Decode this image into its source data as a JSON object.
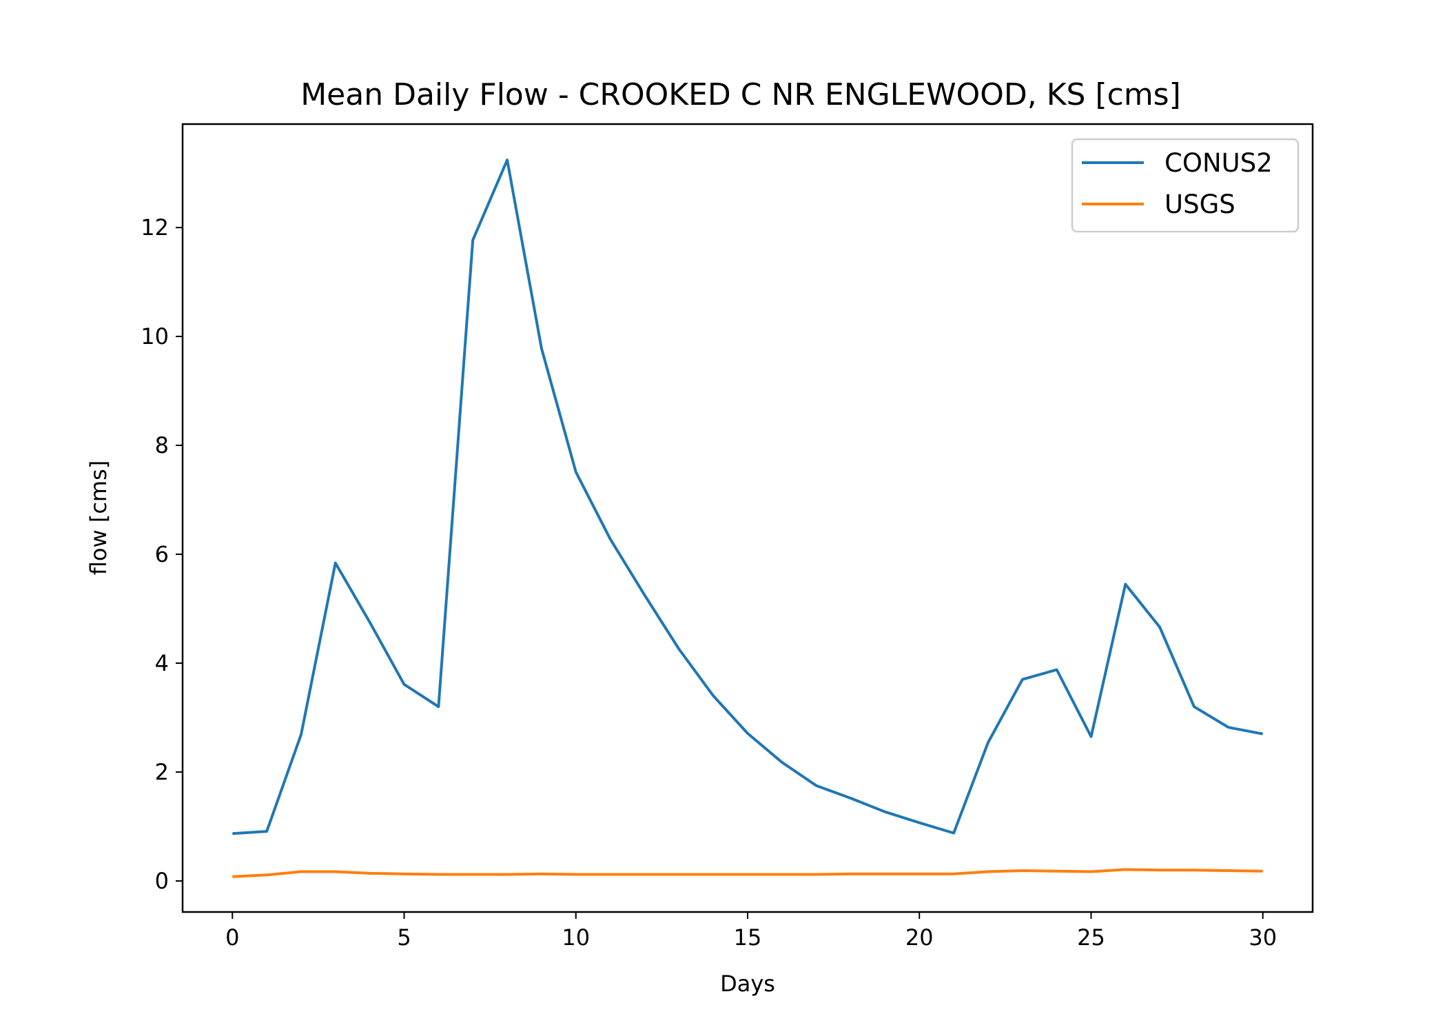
{
  "chart_data": {
    "type": "line",
    "title": "Mean Daily Flow - CROOKED C NR ENGLEWOOD, KS [cms]",
    "xlabel": "Days",
    "ylabel": "flow [cms]",
    "xlim": [
      -1.45,
      31.45
    ],
    "ylim": [
      -0.57,
      13.9
    ],
    "xticks": [
      0,
      5,
      10,
      15,
      20,
      25,
      30
    ],
    "yticks": [
      0,
      2,
      4,
      6,
      8,
      10,
      12
    ],
    "grid": false,
    "legend_position": "top-right",
    "x": [
      0,
      1,
      2,
      3,
      4,
      5,
      6,
      7,
      8,
      9,
      10,
      11,
      12,
      13,
      14,
      15,
      16,
      17,
      18,
      19,
      20,
      21,
      22,
      23,
      24,
      25,
      26,
      27,
      28,
      29,
      30
    ],
    "series": [
      {
        "name": "CONUS2",
        "color": "#1f77b4",
        "values": [
          0.87,
          0.91,
          2.69,
          5.84,
          4.75,
          3.61,
          3.2,
          11.77,
          13.24,
          9.78,
          7.51,
          6.28,
          5.25,
          4.26,
          3.4,
          2.71,
          2.18,
          1.75,
          1.52,
          1.27,
          1.07,
          0.88,
          2.54,
          3.7,
          3.88,
          2.65,
          5.45,
          4.66,
          3.2,
          2.82,
          2.7
        ]
      },
      {
        "name": "USGS",
        "color": "#ff7f0e",
        "values": [
          0.08,
          0.11,
          0.17,
          0.17,
          0.14,
          0.13,
          0.12,
          0.12,
          0.12,
          0.13,
          0.12,
          0.12,
          0.12,
          0.12,
          0.12,
          0.12,
          0.12,
          0.12,
          0.13,
          0.13,
          0.13,
          0.13,
          0.17,
          0.19,
          0.18,
          0.17,
          0.21,
          0.2,
          0.2,
          0.19,
          0.18
        ]
      }
    ]
  }
}
